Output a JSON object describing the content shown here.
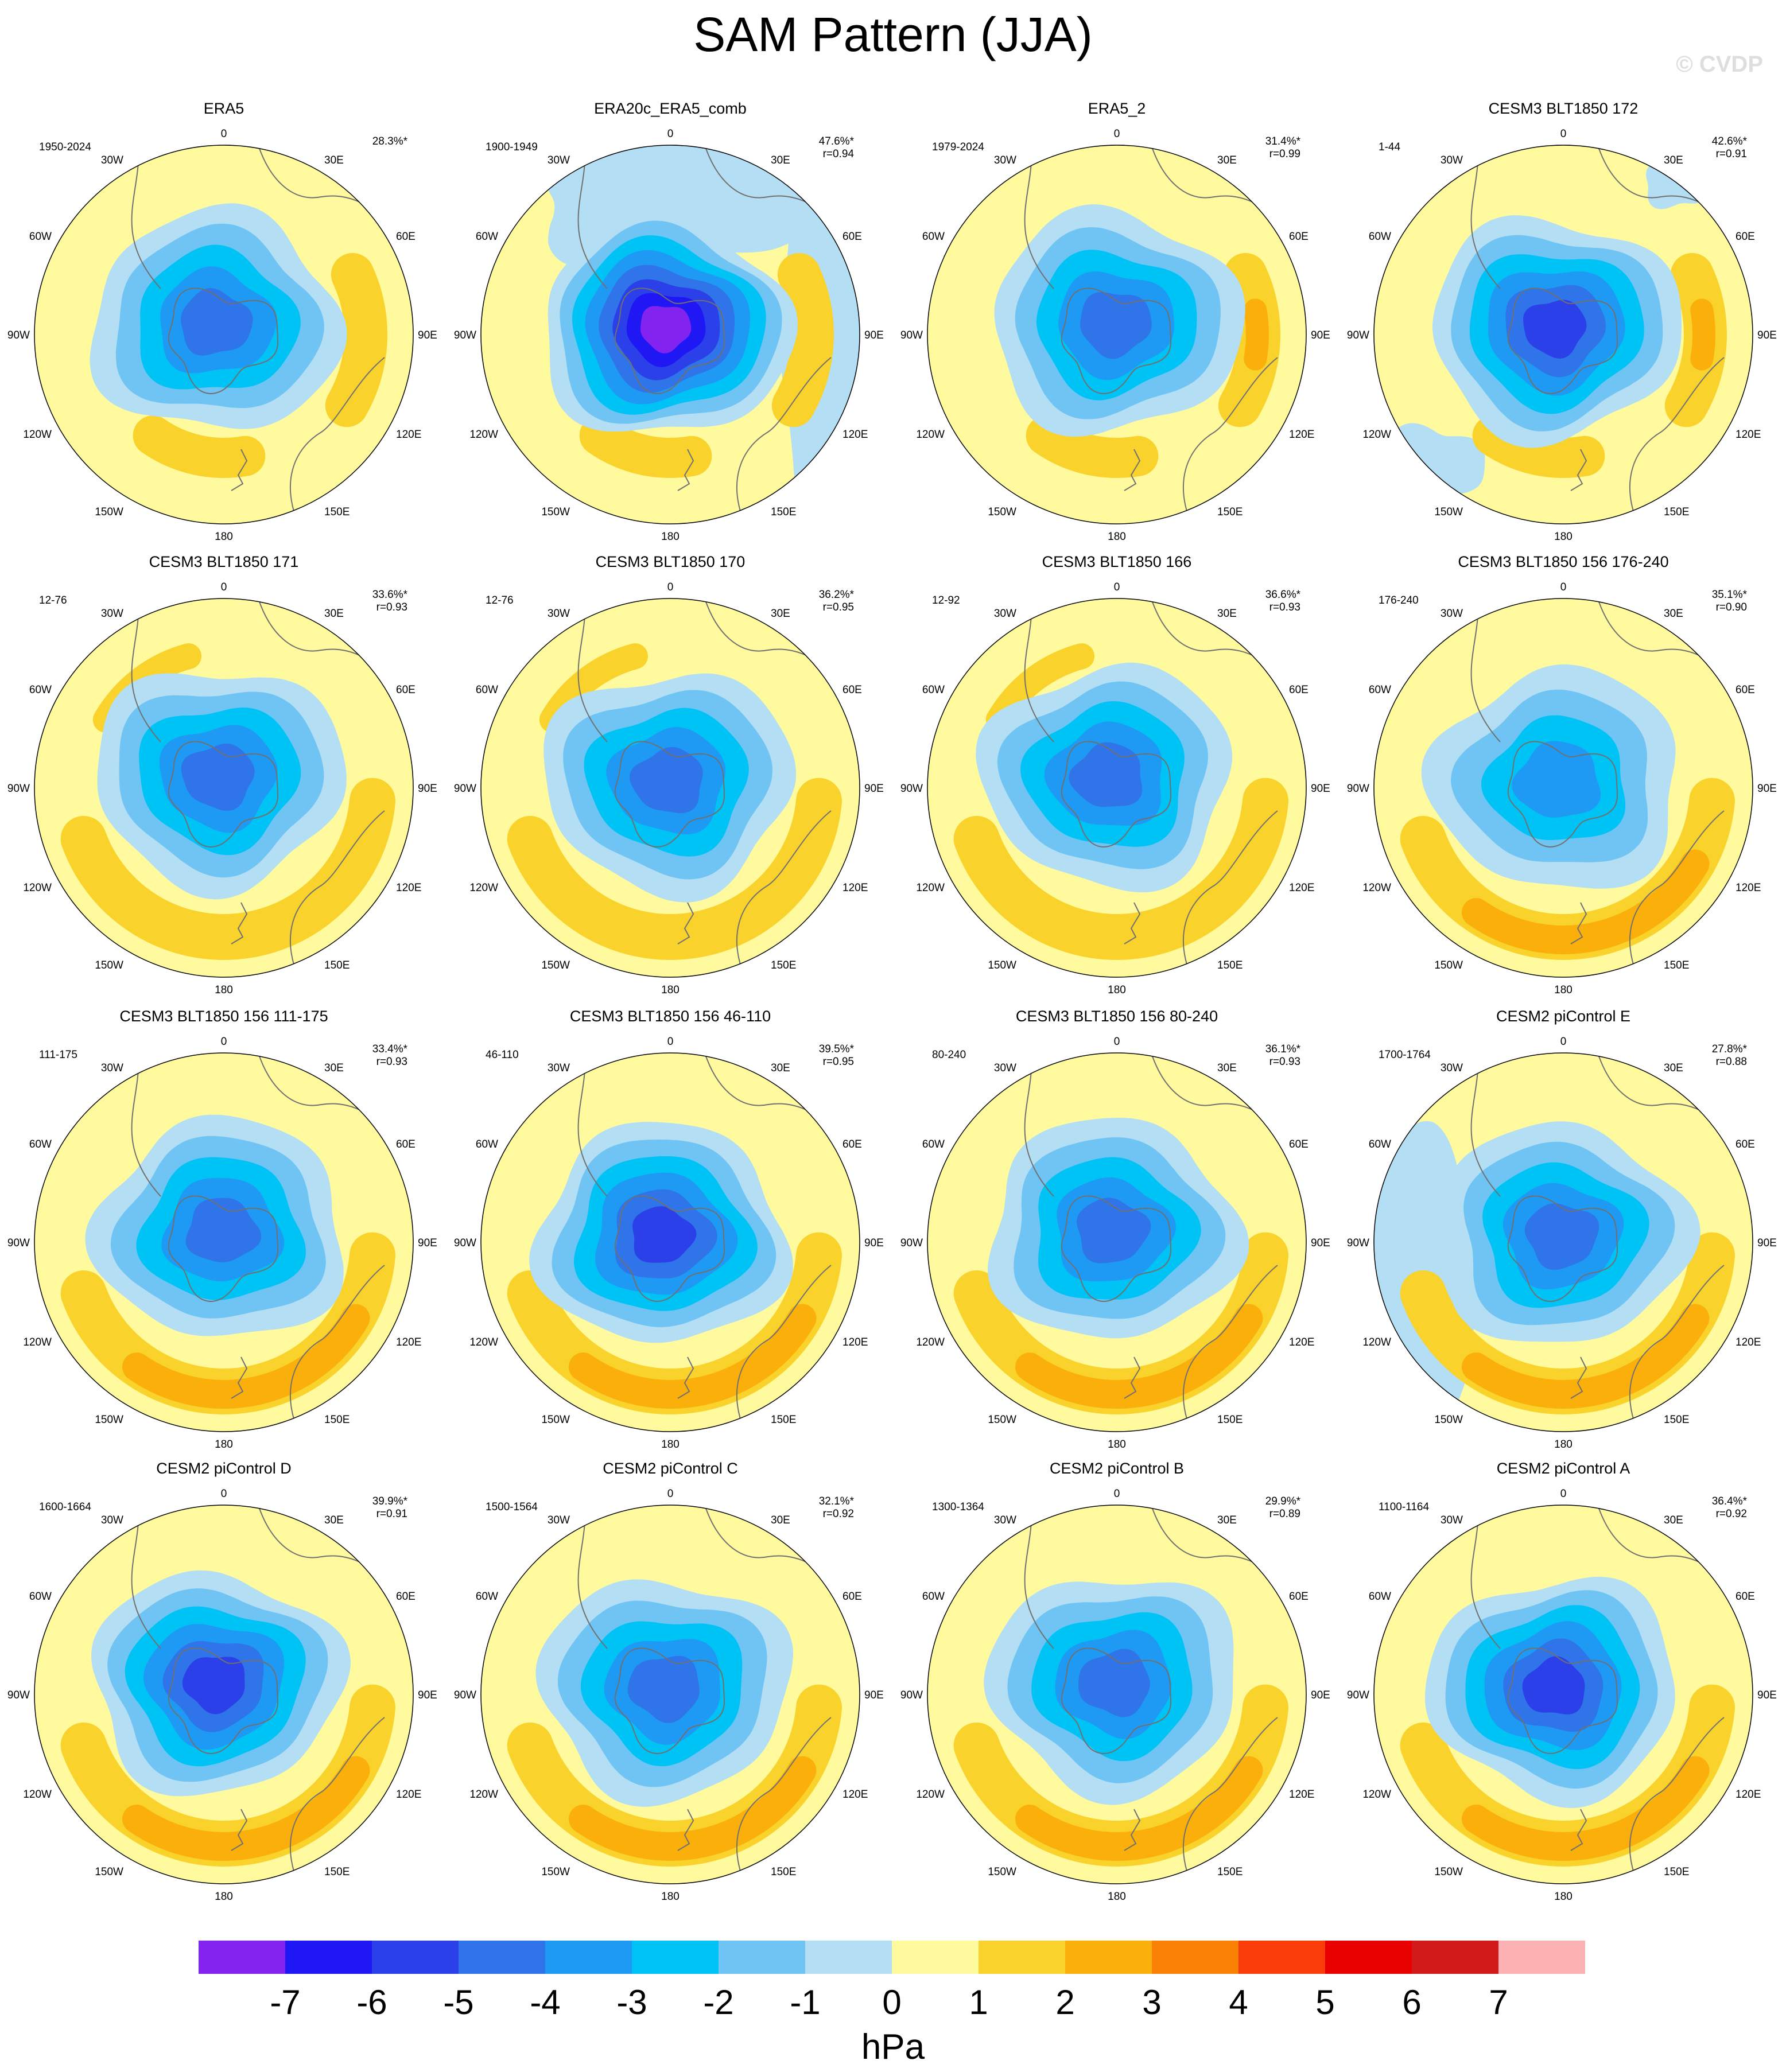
{
  "title": "SAM Pattern (JJA)",
  "watermark": "© CVDP",
  "units": "hPa",
  "colors": {
    "levels": [
      "#8323f0",
      "#1f18f5",
      "#2b40e9",
      "#2f74e8",
      "#1e9af5",
      "#00c3f5",
      "#70c4f4",
      "#b3def3",
      "#fffa9e",
      "#fad22c",
      "#faaf0a",
      "#f98206",
      "#fa3c0b",
      "#e90000",
      "#d21a1a",
      "#fcb2b2"
    ],
    "coast": "#707070",
    "circle": "#000000"
  },
  "colorbar": {
    "ticks": [
      "-7",
      "-6",
      "-5",
      "-4",
      "-3",
      "-2",
      "-1",
      "0",
      "1",
      "2",
      "3",
      "4",
      "5",
      "6",
      "7"
    ]
  },
  "map_labels": {
    "top": "0",
    "bottom": "180",
    "ul": "30W",
    "ur": "30E",
    "ml1": "60W",
    "mr1": "60E",
    "ml2": "90W",
    "mr2": "90E",
    "ml3": "120W",
    "mr3": "120E",
    "ll": "150W",
    "lr": "150E"
  },
  "chart_data": [
    {
      "type": "heatmap",
      "title": "ERA5",
      "years": "1950-2024",
      "pct": "28.3%*",
      "r": "",
      "center_min": -4,
      "max_pos": 1
    },
    {
      "type": "heatmap",
      "title": "ERA20c_ERA5_comb",
      "years": "1900-1949",
      "pct": "47.6%*",
      "r": "r=0.94",
      "center_min": -7,
      "max_pos": 1
    },
    {
      "type": "heatmap",
      "title": "ERA5_2",
      "years": "1979-2024",
      "pct": "31.4%*",
      "r": "r=0.99",
      "center_min": -4,
      "max_pos": 2
    },
    {
      "type": "heatmap",
      "title": "CESM3 BLT1850 172",
      "years": "1-44",
      "pct": "42.6%*",
      "r": "r=0.91",
      "center_min": -5,
      "max_pos": 2
    },
    {
      "type": "heatmap",
      "title": "CESM3 BLT1850 171",
      "years": "12-76",
      "pct": "33.6%*",
      "r": "r=0.93",
      "center_min": -4,
      "max_pos": 2
    },
    {
      "type": "heatmap",
      "title": "CESM3 BLT1850 170",
      "years": "12-76",
      "pct": "36.2%*",
      "r": "r=0.95",
      "center_min": -4,
      "max_pos": 2
    },
    {
      "type": "heatmap",
      "title": "CESM3 BLT1850 166",
      "years": "12-92",
      "pct": "36.6%*",
      "r": "r=0.93",
      "center_min": -4,
      "max_pos": 1
    },
    {
      "type": "heatmap",
      "title": "CESM3 BLT1850 156 176-240",
      "years": "176-240",
      "pct": "35.1%*",
      "r": "r=0.90",
      "center_min": -3,
      "max_pos": 2
    },
    {
      "type": "heatmap",
      "title": "CESM3 BLT1850 156 111-175",
      "years": "111-175",
      "pct": "33.4%*",
      "r": "r=0.93",
      "center_min": -4,
      "max_pos": 1
    },
    {
      "type": "heatmap",
      "title": "CESM3 BLT1850 156 46-110",
      "years": "46-110",
      "pct": "39.5%*",
      "r": "r=0.95",
      "center_min": -5,
      "max_pos": 1
    },
    {
      "type": "heatmap",
      "title": "CESM3 BLT1850 156 80-240",
      "years": "80-240",
      "pct": "36.1%*",
      "r": "r=0.93",
      "center_min": -4,
      "max_pos": 2
    },
    {
      "type": "heatmap",
      "title": "CESM2 piControl E",
      "years": "1700-1764",
      "pct": "27.8%*",
      "r": "r=0.88",
      "center_min": -4,
      "max_pos": 2
    },
    {
      "type": "heatmap",
      "title": "CESM2 piControl D",
      "years": "1600-1664",
      "pct": "39.9%*",
      "r": "r=0.91",
      "center_min": -5,
      "max_pos": 2
    },
    {
      "type": "heatmap",
      "title": "CESM2 piControl C",
      "years": "1500-1564",
      "pct": "32.1%*",
      "r": "r=0.92",
      "center_min": -4,
      "max_pos": 2
    },
    {
      "type": "heatmap",
      "title": "CESM2 piControl B",
      "years": "1300-1364",
      "pct": "29.9%*",
      "r": "r=0.89",
      "center_min": -4,
      "max_pos": 2
    },
    {
      "type": "heatmap",
      "title": "CESM2 piControl A",
      "years": "1100-1164",
      "pct": "36.4%*",
      "r": "r=0.92",
      "center_min": -5,
      "max_pos": 2
    }
  ]
}
